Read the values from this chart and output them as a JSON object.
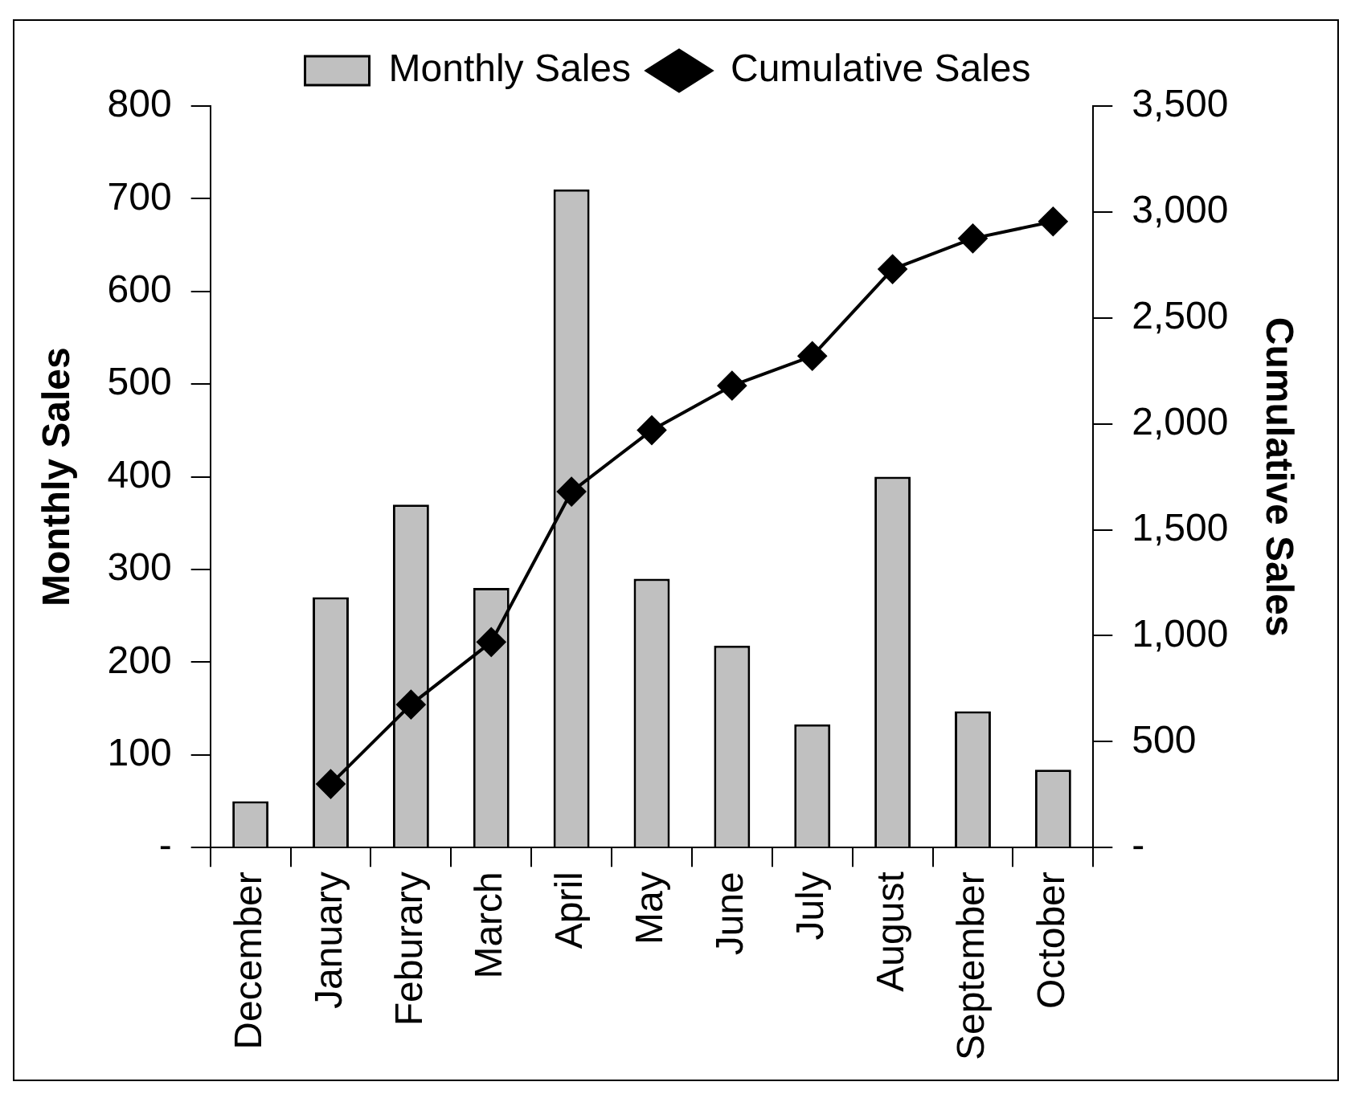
{
  "chart_data": {
    "type": "bar",
    "categories": [
      "December",
      "January",
      "Feburary",
      "March",
      "April",
      "May",
      "June",
      "July",
      "August",
      "September",
      "October"
    ],
    "ylabel": "Monthly Sales",
    "y2label": "Cumulative Sales",
    "series": [
      {
        "name": "Monthly Sales",
        "color": "#c0c0c0",
        "values": [
          50,
          270,
          370,
          280,
          710,
          290,
          218,
          133,
          400,
          147,
          84
        ]
      },
      {
        "name": "Cumulative Sales",
        "type": "line",
        "axis": "y2",
        "color": "#000000",
        "marker": "diamond",
        "values": [
          null,
          300,
          675,
          970,
          1680,
          1970,
          2180,
          2320,
          2730,
          2875,
          2955
        ]
      }
    ],
    "ylim": [
      0,
      800
    ],
    "yticks": [
      {
        "value": 0,
        "label": "-"
      },
      100,
      200,
      300,
      400,
      500,
      600,
      700,
      800
    ],
    "y2lim": [
      0,
      3500
    ],
    "y2ticks": [
      {
        "value": 0,
        "label": "-"
      },
      500,
      {
        "value": 1000,
        "label": "1,000"
      },
      {
        "value": 1500,
        "label": "1,500"
      },
      {
        "value": 2000,
        "label": "2,000"
      },
      {
        "value": 2500,
        "label": "2,500"
      },
      {
        "value": 3000,
        "label": "3,000"
      },
      {
        "value": 3500,
        "label": "3,500"
      }
    ],
    "grid": false,
    "legend": "top"
  }
}
